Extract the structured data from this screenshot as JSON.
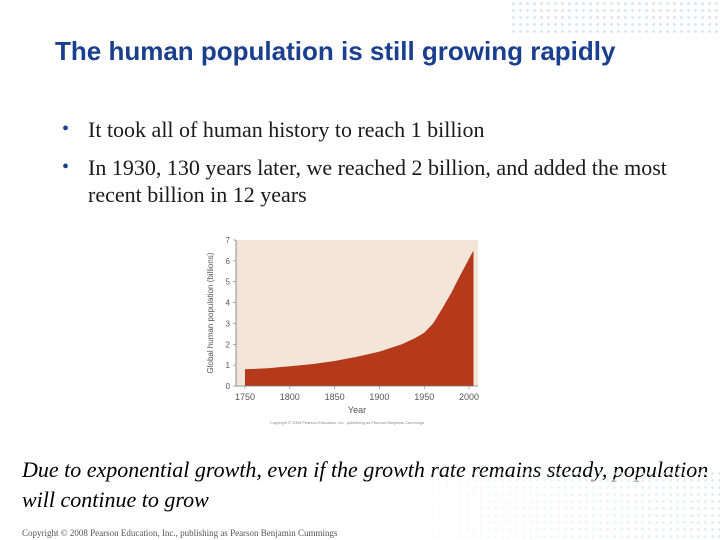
{
  "slide": {
    "title": "The human population is still growing rapidly",
    "bullets": [
      "It took all of human history to reach 1 billion",
      "In 1930, 130 years later, we reached 2 billion, and added the most recent billion in 12 years"
    ],
    "caption": "Due to exponential growth, even if the growth rate remains steady, population will continue to grow",
    "footer": "Copyright © 2008 Pearson Education, Inc., publishing as Pearson Benjamin Cummings"
  },
  "chart_data": {
    "type": "area",
    "title": "",
    "xlabel": "Year",
    "ylabel": "Global human population (billions)",
    "x": [
      1750,
      1775,
      1800,
      1825,
      1850,
      1875,
      1900,
      1925,
      1940,
      1950,
      1960,
      1970,
      1980,
      1990,
      2000,
      2005
    ],
    "y": [
      0.8,
      0.85,
      0.95,
      1.05,
      1.2,
      1.4,
      1.65,
      2.0,
      2.3,
      2.55,
      3.0,
      3.7,
      4.45,
      5.3,
      6.1,
      6.5
    ],
    "xticks": [
      1750,
      1800,
      1850,
      1900,
      1950,
      2000
    ],
    "yticks": [
      0,
      1,
      2,
      3,
      4,
      5,
      6,
      7
    ],
    "xlim": [
      1740,
      2010
    ],
    "ylim": [
      0,
      7
    ],
    "fill_color": "#b5391b",
    "background_color": "#f3e6d9",
    "grid": false,
    "copyright": "Copyright © 2008 Pearson Education, Inc., publishing as Pearson Benjamin Cummings"
  }
}
